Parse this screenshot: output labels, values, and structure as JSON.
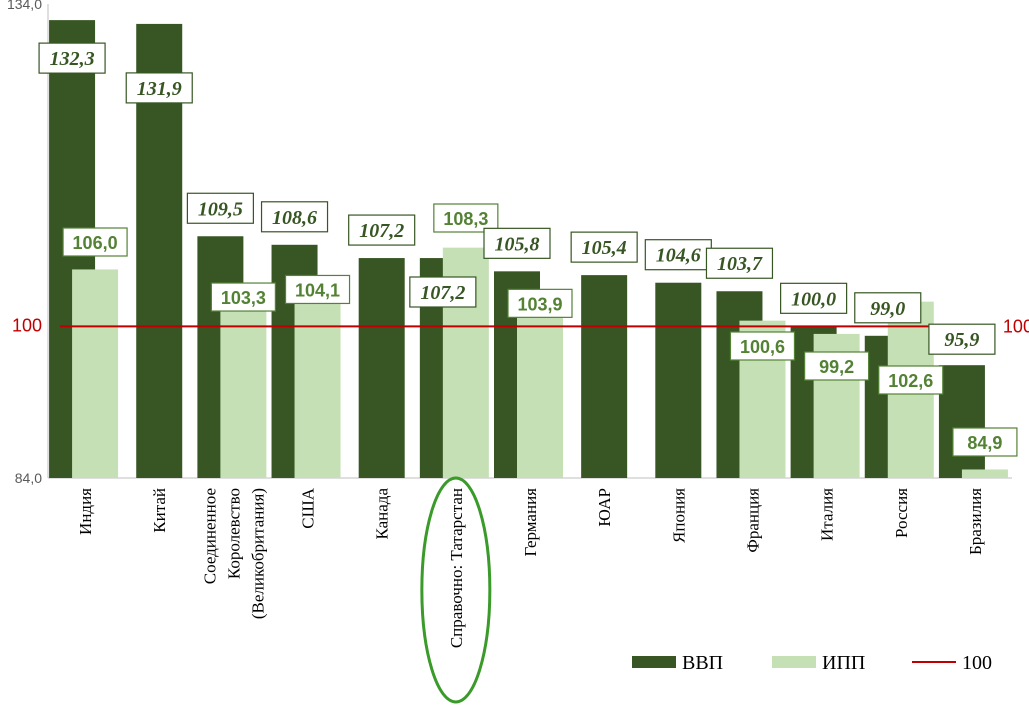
{
  "chart_data": {
    "type": "bar",
    "categories": [
      [
        "Индия"
      ],
      [
        "Китай"
      ],
      [
        "Соединенное",
        "Королевство",
        "(Великобритания)"
      ],
      [
        "США"
      ],
      [
        "Канада"
      ],
      [
        "Справочно: Татарстан"
      ],
      [
        "Германия"
      ],
      [
        "ЮАР"
      ],
      [
        "Япония"
      ],
      [
        "Франция"
      ],
      [
        "Италия"
      ],
      [
        "Россия"
      ],
      [
        "Бразилия"
      ]
    ],
    "series": [
      {
        "name": "ВВП",
        "color": "#375623",
        "values": [
          132.3,
          131.9,
          109.5,
          108.6,
          107.2,
          107.2,
          105.8,
          105.4,
          104.6,
          103.7,
          100.0,
          99.0,
          95.9
        ],
        "labels": [
          "132,3",
          "131,9",
          "109,5",
          "108,6",
          "107,2",
          "107,2",
          "105,8",
          "105,4",
          "104,6",
          "103,7",
          "100,0",
          "99,0",
          "95,9"
        ]
      },
      {
        "name": "ИПП",
        "color": "#c5e0b4",
        "values": [
          106.0,
          null,
          103.3,
          104.1,
          null,
          108.3,
          103.9,
          null,
          null,
          100.6,
          99.2,
          102.6,
          84.9
        ],
        "labels": [
          "106,0",
          "",
          "103,3",
          "104,1",
          "",
          "108,3",
          "103,9",
          "",
          "",
          "100,6",
          "99,2",
          "102,6",
          "84,9"
        ]
      }
    ],
    "reference_line": {
      "name": "100",
      "value": 100,
      "color": "#c00000",
      "label": "100"
    },
    "ylim": [
      84.0,
      134.0
    ],
    "yticks": [
      "84,0",
      "100",
      "134,0"
    ],
    "highlighted_category": "Справочно: Татарстан",
    "highlight_color": "#3a9a2a",
    "legend": {
      "placement": "bottom-right",
      "items": [
        "ВВП",
        "ИПП",
        "100"
      ]
    }
  }
}
